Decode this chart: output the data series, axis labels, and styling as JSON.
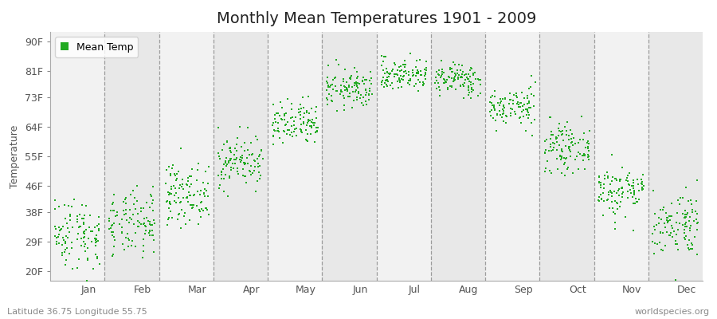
{
  "title": "Monthly Mean Temperatures 1901 - 2009",
  "ylabel": "Temperature",
  "xlabel_months": [
    "Jan",
    "Feb",
    "Mar",
    "Apr",
    "May",
    "Jun",
    "Jul",
    "Aug",
    "Sep",
    "Oct",
    "Nov",
    "Dec"
  ],
  "ytick_labels": [
    "20F",
    "29F",
    "38F",
    "46F",
    "55F",
    "64F",
    "73F",
    "81F",
    "90F"
  ],
  "ytick_values": [
    20,
    29,
    38,
    46,
    55,
    64,
    73,
    81,
    90
  ],
  "ylim": [
    17,
    93
  ],
  "legend_label": "Mean Temp",
  "dot_color": "#22aa22",
  "dot_size": 3,
  "background_light": "#f2f2f2",
  "background_dark": "#e8e8e8",
  "subtitle_left": "Latitude 36.75 Longitude 55.75",
  "subtitle_right": "worldspecies.org",
  "monthly_means_F": [
    31.5,
    34.0,
    43.5,
    53.5,
    64.5,
    75.5,
    80.0,
    78.5,
    70.0,
    57.5,
    44.5,
    34.5
  ],
  "monthly_stds_F": [
    5.5,
    5.0,
    4.5,
    4.0,
    3.5,
    3.0,
    2.5,
    2.5,
    3.0,
    3.5,
    4.0,
    5.0
  ],
  "n_years": 109,
  "seed": 42,
  "title_fontsize": 14,
  "axis_fontsize": 9,
  "label_fontsize": 9
}
